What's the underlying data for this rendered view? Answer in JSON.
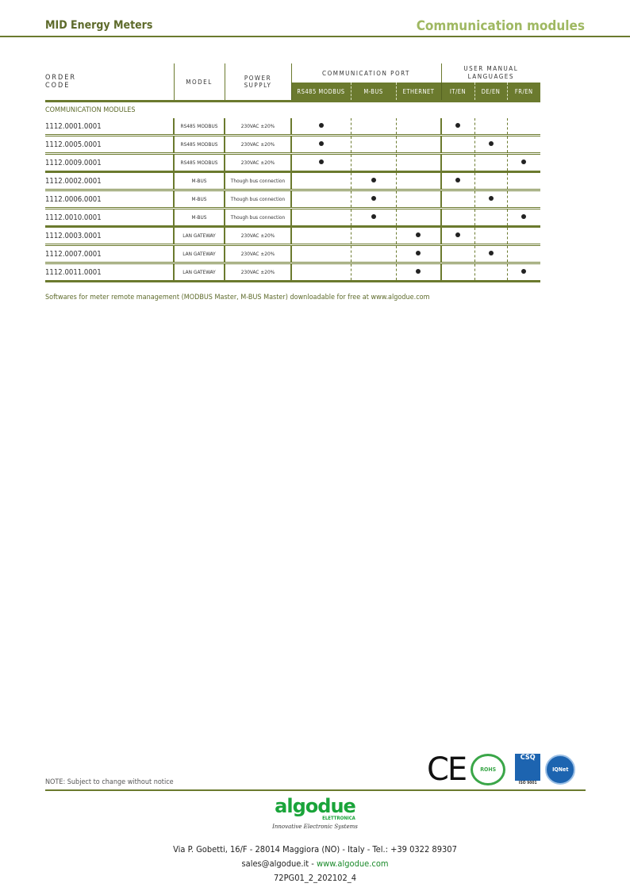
{
  "header": {
    "left": "MID Energy Meters",
    "right": "Communication modules"
  },
  "table": {
    "headers": {
      "order_code_1": "ORDER",
      "order_code_2": "CODE",
      "model": "MODEL",
      "power_supply_1": "POWER",
      "power_supply_2": "SUPPLY",
      "communication_port": "COMMUNICATION PORT",
      "user_manual": "USER MANUAL LANGUAGES"
    },
    "subheaders": [
      "RS485 MODBUS",
      "M-BUS",
      "ETHERNET",
      "IT/EN",
      "DE/EN",
      "FR/EN"
    ],
    "section": "COMMUNICATION MODULES",
    "rows": [
      {
        "code": "1112.0001.0001",
        "model": "RS485 MODBUS",
        "power": "230VAC ±20%",
        "port": "RS485 MODBUS",
        "lang": "IT/EN"
      },
      {
        "code": "1112.0005.0001",
        "model": "RS485 MODBUS",
        "power": "230VAC ±20%",
        "port": "RS485 MODBUS",
        "lang": "DE/EN"
      },
      {
        "code": "1112.0009.0001",
        "model": "RS485 MODBUS",
        "power": "230VAC ±20%",
        "port": "RS485 MODBUS",
        "lang": "FR/EN"
      },
      {
        "code": "1112.0002.0001",
        "model": "M-BUS",
        "power": "Though bus connection",
        "port": "M-BUS",
        "lang": "IT/EN"
      },
      {
        "code": "1112.0006.0001",
        "model": "M-BUS",
        "power": "Though bus connection",
        "port": "M-BUS",
        "lang": "DE/EN"
      },
      {
        "code": "1112.0010.0001",
        "model": "M-BUS",
        "power": "Though bus connection",
        "port": "M-BUS",
        "lang": "FR/EN"
      },
      {
        "code": "1112.0003.0001",
        "model": "LAN GATEWAY",
        "power": "230VAC ±20%",
        "port": "ETHERNET",
        "lang": "IT/EN"
      },
      {
        "code": "1112.0007.0001",
        "model": "LAN GATEWAY",
        "power": "230VAC ±20%",
        "port": "ETHERNET",
        "lang": "DE/EN"
      },
      {
        "code": "1112.0011.0001",
        "model": "LAN GATEWAY",
        "power": "230VAC ±20%",
        "port": "ETHERNET",
        "lang": "FR/EN"
      }
    ]
  },
  "software_note": "Softwares for meter remote management (MODBUS Master, M-BUS Master) downloadable for free at www.algodue.com",
  "change_note": "NOTE: Subject to change without notice",
  "certifications": {
    "ce": "CE",
    "rohs": "ROHS",
    "csq": "CSQ",
    "iso": "ISO 9001",
    "iqnet": "IQNet"
  },
  "footer": {
    "brand": "algodue",
    "brand_sub": "ELETTRONICA",
    "tagline": "Innovative Electronic Systems",
    "address": "Via P. Gobetti, 16/F  - 28014 Maggiora (NO) - Italy - Tel.: +39 0322 89307",
    "email": "sales@algodue.it",
    "separator": " - ",
    "website": "www.algodue.com",
    "doc_code": "72PG01_2_202102_4"
  },
  "colors": {
    "accent": "#6b7a2e",
    "title_light": "#9fb862",
    "brand_green": "#1aa43a"
  }
}
